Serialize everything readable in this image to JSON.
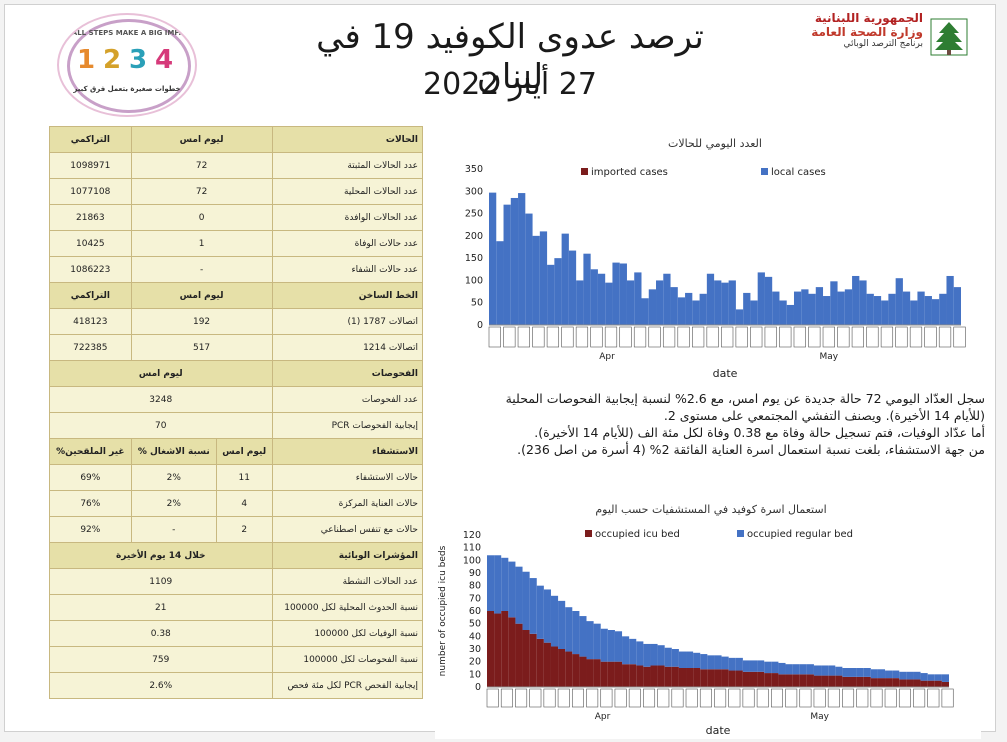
{
  "header": {
    "title": "ترصد عدوى الكوفيد 19 في لبنان",
    "date": "27 أيار 2022",
    "gov_line1": "الجمهورية اللبنانية",
    "gov_line2": "وزارة الصحة العامة",
    "gov_line3": "برنامج الترصد الوبائي",
    "badge_top": "SMALL STEPS MAKE A BIG IMPACT",
    "badge_bottom": "خطوات صغيرة بتعمل فرق كبير",
    "badge_numbers": [
      "1",
      "2",
      "3",
      "4"
    ]
  },
  "colors": {
    "accent": "#4472c4",
    "imported": "#7b1c1c",
    "table_header": "#e6e0a8",
    "table_row": "#f6f3d6"
  },
  "table": {
    "cases_header": [
      "الحالات",
      "ليوم امس",
      "التراكمي"
    ],
    "cases_rows": [
      [
        "عدد الحالات المثبتة",
        "72",
        "1098971"
      ],
      [
        "عدد الحالات المحلية",
        "72",
        "1077108"
      ],
      [
        "عدد الحالات الوافدة",
        "0",
        "21863"
      ],
      [
        "عدد حالات الوفاة",
        "1",
        "10425"
      ],
      [
        "عدد حالات الشفاء",
        "-",
        "1086223"
      ]
    ],
    "hotline_header": [
      "الخط الساخن",
      "ليوم امس",
      "التراكمي"
    ],
    "hotline_rows": [
      [
        "اتصالات 1787 (1)",
        "192",
        "418123"
      ],
      [
        "اتصالات 1214",
        "517",
        "722385"
      ]
    ],
    "tests_header": [
      "الفحوصات",
      "ليوم امس"
    ],
    "tests_rows": [
      [
        "عدد الفحوصات",
        "3248"
      ],
      [
        "إيجابية الفحوصات PCR",
        "70"
      ]
    ],
    "hosp_header": [
      "الاستشفاء",
      "ليوم امس",
      "% نسبة الاشغال",
      "%غير الملقحين"
    ],
    "hosp_rows": [
      [
        "حالات الاستشفاء",
        "11",
        "2%",
        "69%"
      ],
      [
        "حالات العناية المركزة",
        "4",
        "2%",
        "76%"
      ],
      [
        "حالات مع تنفس اصطناعي",
        "2",
        "-",
        "92%"
      ]
    ],
    "indic_header": [
      "المؤشرات الوبائية",
      "خلال 14 يوم الأخيرة"
    ],
    "indic_rows": [
      [
        "عدد الحالات النشطة",
        "1109"
      ],
      [
        "نسبة الحدوث المحلية لكل 100000",
        "21"
      ],
      [
        "نسبة الوفيات لكل 100000",
        "0.38"
      ],
      [
        "نسبة الفحوصات لكل 100000",
        "759"
      ],
      [
        "إيجابية الفحص PCR لكل مئة فحص",
        "2.6%"
      ]
    ]
  },
  "paragraph": [
    "سجل العدّاد اليومي 72 حالة جديدة عن يوم امس، مع 2.6% لنسبة إيجابية الفحوصات المحلية",
    "(للأيام 14 الأخيرة). ويصنف التفشي المجتمعي على مستوى 2.",
    "أما عدّاد الوفيات، فتم تسجيل حالة وفاة مع 0.38 وفاة لكل مئة الف (للأيام 14 الأخيرة).",
    "من جهة الاستشفاء، بلغت نسبة استعمال اسرة العناية الفائقة 2% (4 أسرة من اصل 236)."
  ],
  "chart_data": [
    {
      "type": "bar",
      "title": "العدد اليومي للحالات",
      "xlabel": "date",
      "ylabel": "",
      "ylim": [
        0,
        350
      ],
      "yticks": [
        0,
        50,
        100,
        150,
        200,
        250,
        300,
        350
      ],
      "month_labels": [
        "Apr",
        "May"
      ],
      "stacked": true,
      "series": [
        {
          "name": "imported cases",
          "values": [
            0,
            0,
            0,
            0,
            0,
            0,
            0,
            0,
            0,
            0,
            0,
            0,
            0,
            0,
            0,
            0,
            0,
            0,
            0,
            0,
            0,
            0,
            0,
            0,
            0,
            0,
            0,
            0,
            0,
            0,
            0,
            0,
            0,
            0,
            0,
            0,
            0,
            0,
            0,
            0,
            0,
            0,
            0,
            0,
            0,
            0,
            0,
            0,
            0,
            0,
            0,
            0,
            0,
            0,
            0,
            0,
            0,
            0,
            0,
            0,
            0,
            0,
            0,
            0,
            0
          ]
        },
        {
          "name": "local cases",
          "values": [
            297,
            188,
            270,
            285,
            296,
            250,
            200,
            210,
            135,
            150,
            205,
            167,
            100,
            160,
            125,
            115,
            95,
            140,
            138,
            100,
            118,
            60,
            80,
            100,
            115,
            85,
            62,
            72,
            55,
            70,
            115,
            100,
            95,
            100,
            35,
            72,
            55,
            118,
            108,
            75,
            55,
            45,
            75,
            80,
            70,
            85,
            65,
            98,
            75,
            80,
            110,
            100,
            70,
            65,
            55,
            70,
            105,
            75,
            55,
            75,
            65,
            58,
            70,
            110,
            85
          ]
        }
      ]
    },
    {
      "type": "bar",
      "title": "استعمال اسرة كوفيد في المستشفيات حسب اليوم",
      "xlabel": "date",
      "ylabel": "number of occupied icu beds",
      "ylim": [
        0,
        120
      ],
      "yticks": [
        0,
        10,
        20,
        30,
        40,
        50,
        60,
        70,
        80,
        90,
        100,
        110,
        120
      ],
      "month_labels": [
        "Apr",
        "May"
      ],
      "stacked": true,
      "series": [
        {
          "name": "occupied icu bed",
          "values": [
            60,
            58,
            60,
            55,
            50,
            45,
            42,
            38,
            35,
            32,
            30,
            28,
            26,
            24,
            22,
            22,
            20,
            20,
            20,
            18,
            18,
            17,
            16,
            17,
            17,
            16,
            16,
            15,
            15,
            15,
            14,
            14,
            14,
            14,
            13,
            13,
            12,
            12,
            12,
            11,
            11,
            10,
            10,
            10,
            10,
            10,
            9,
            9,
            9,
            9,
            8,
            8,
            8,
            8,
            7,
            7,
            7,
            7,
            6,
            6,
            6,
            5,
            5,
            5,
            4
          ]
        },
        {
          "name": "occupied regular bed",
          "values": [
            44,
            46,
            42,
            44,
            45,
            46,
            44,
            42,
            42,
            40,
            38,
            35,
            34,
            32,
            30,
            28,
            26,
            25,
            24,
            22,
            20,
            19,
            18,
            17,
            16,
            15,
            14,
            13,
            13,
            12,
            12,
            11,
            11,
            10,
            10,
            10,
            9,
            9,
            9,
            9,
            9,
            9,
            8,
            8,
            8,
            8,
            8,
            8,
            8,
            7,
            7,
            7,
            7,
            7,
            7,
            7,
            6,
            6,
            6,
            6,
            6,
            6,
            5,
            5,
            6
          ]
        }
      ]
    }
  ]
}
